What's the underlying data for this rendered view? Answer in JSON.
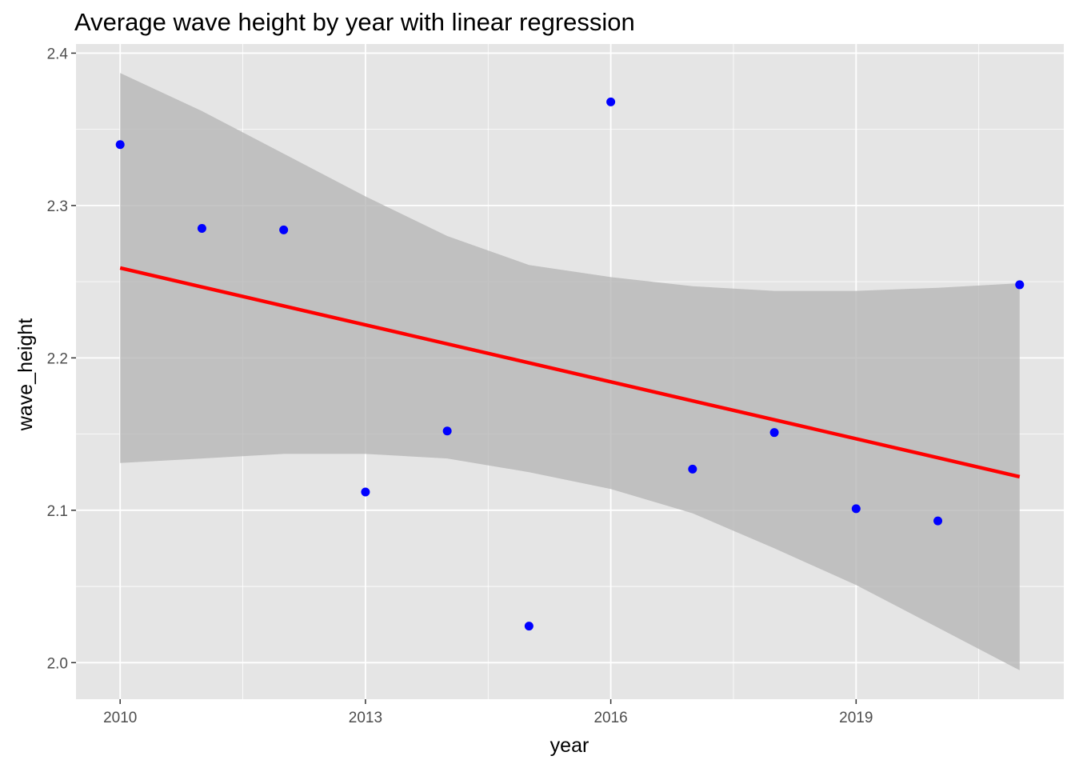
{
  "chart_data": {
    "type": "scatter",
    "title": "Average wave height by year with linear regression",
    "xlabel": "year",
    "ylabel": "wave_height",
    "xlim": [
      2009.46,
      2021.54
    ],
    "ylim": [
      1.976,
      2.406
    ],
    "x_ticks": [
      2010,
      2013,
      2016,
      2019
    ],
    "y_ticks": [
      2.0,
      2.1,
      2.2,
      2.3,
      2.4
    ],
    "grid": true,
    "legend": "none",
    "points": [
      {
        "x": 2010,
        "y": 2.34
      },
      {
        "x": 2011,
        "y": 2.285
      },
      {
        "x": 2012,
        "y": 2.284
      },
      {
        "x": 2013,
        "y": 2.112
      },
      {
        "x": 2014,
        "y": 2.152
      },
      {
        "x": 2015,
        "y": 2.024
      },
      {
        "x": 2016,
        "y": 2.368
      },
      {
        "x": 2017,
        "y": 2.127
      },
      {
        "x": 2018,
        "y": 2.151
      },
      {
        "x": 2019,
        "y": 2.101
      },
      {
        "x": 2020,
        "y": 2.093
      },
      {
        "x": 2021,
        "y": 2.248
      }
    ],
    "regression": {
      "x": [
        2010,
        2021
      ],
      "y": [
        2.259,
        2.122
      ]
    },
    "confidence_band": {
      "x": [
        2010,
        2011,
        2012,
        2013,
        2014,
        2015,
        2016,
        2017,
        2018,
        2019,
        2020,
        2021
      ],
      "upper": [
        2.387,
        2.362,
        2.334,
        2.306,
        2.28,
        2.261,
        2.253,
        2.247,
        2.244,
        2.244,
        2.246,
        2.249
      ],
      "lower": [
        2.131,
        2.134,
        2.137,
        2.137,
        2.134,
        2.125,
        2.114,
        2.098,
        2.075,
        2.051,
        2.023,
        1.995
      ]
    },
    "colors": {
      "panel": "#e5e5e5",
      "grid": "#ffffff",
      "points": "#0000ff",
      "regression_line": "#ff0000",
      "band": "#b3b3b3"
    }
  }
}
